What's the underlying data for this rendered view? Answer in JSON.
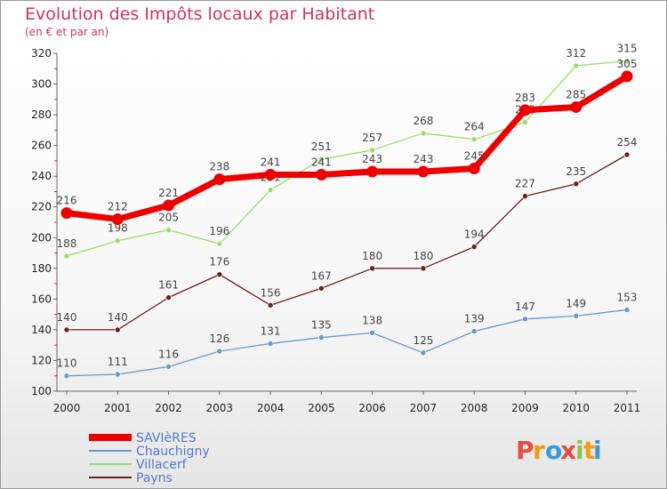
{
  "chart_data": {
    "type": "line",
    "title": "Evolution des Impôts locaux par Habitant",
    "subtitle": "(en € et par an)",
    "x": [
      "2000",
      "2001",
      "2002",
      "2003",
      "2004",
      "2005",
      "2006",
      "2007",
      "2008",
      "2009",
      "2010",
      "2011"
    ],
    "ylim": [
      100,
      320
    ],
    "yticks": [
      100,
      120,
      140,
      160,
      180,
      200,
      220,
      240,
      260,
      280,
      300,
      320
    ],
    "grid": false,
    "legend_position": "bottom-left",
    "series": [
      {
        "name": "SAVIèRES",
        "color": "#ee0000",
        "values": [
          216,
          212,
          221,
          238,
          241,
          241,
          243,
          243,
          245,
          283,
          285,
          305
        ]
      },
      {
        "name": "Chauchigny",
        "color": "#6699cc",
        "values": [
          110,
          111,
          116,
          126,
          131,
          135,
          138,
          125,
          139,
          147,
          149,
          153
        ]
      },
      {
        "name": "Villacerf",
        "color": "#99dd66",
        "values": [
          188,
          198,
          205,
          196,
          231,
          251,
          257,
          268,
          264,
          275,
          312,
          315
        ]
      },
      {
        "name": "Payns",
        "color": "#6b1f1f",
        "values": [
          140,
          140,
          161,
          176,
          156,
          167,
          180,
          180,
          194,
          227,
          235,
          254
        ]
      }
    ]
  },
  "logo": {
    "letters": [
      "P",
      "r",
      "o",
      "x",
      "i",
      "t",
      "i"
    ],
    "colors": [
      "#e84c3d",
      "#f39c12",
      "#3a9ad9",
      "#e84c3d",
      "#8bc34a",
      "#f39c12",
      "#3a9ad9"
    ]
  }
}
